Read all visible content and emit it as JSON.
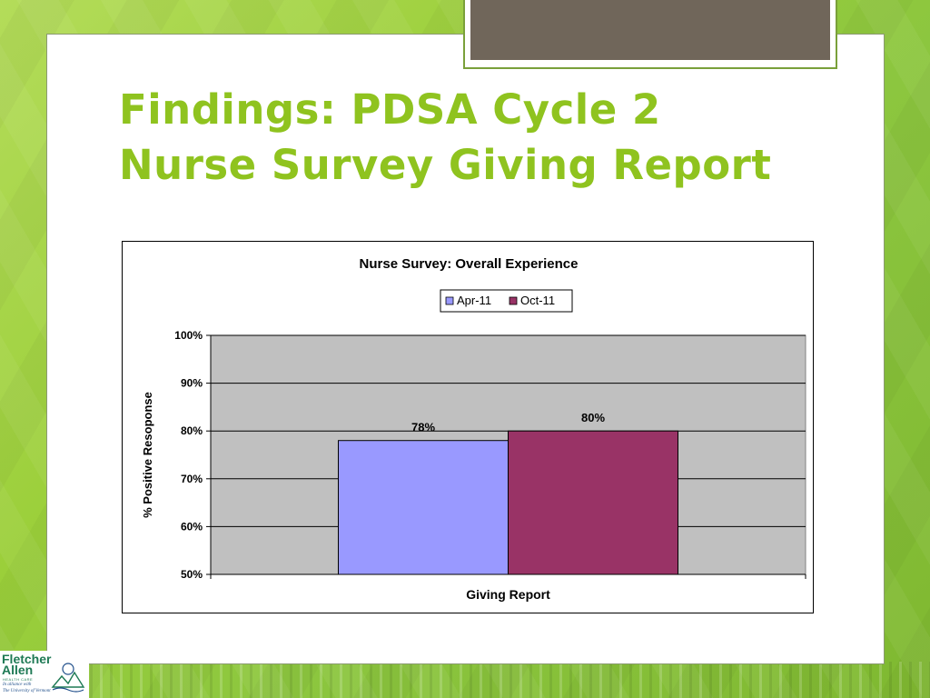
{
  "slide": {
    "title_line1": "Findings:  PDSA Cycle 2",
    "title_line2": "Nurse Survey Giving Report"
  },
  "logo": {
    "line1": "Fletcher",
    "line2": "Allen",
    "line3": "HEALTH CARE",
    "line4": "In alliance with",
    "line5": "The University of Vermont"
  },
  "colors": {
    "title_green": "#8fc31f",
    "plot_area": "#c0c0c0",
    "series_apr": "#9999ff",
    "series_oct": "#993366"
  },
  "chart_data": {
    "type": "bar",
    "title": "Nurse Survey:  Overall Experience",
    "xlabel": "Giving Report",
    "ylabel": "% Positive Resoponse",
    "categories": [
      "Giving Report"
    ],
    "series": [
      {
        "name": "Apr-11",
        "values": [
          78
        ],
        "label": "78%",
        "color": "#9999ff"
      },
      {
        "name": "Oct-11",
        "values": [
          80
        ],
        "label": "80%",
        "color": "#993366"
      }
    ],
    "ylim": [
      50,
      100
    ],
    "yticks": [
      {
        "value": 100,
        "label": "100%"
      },
      {
        "value": 90,
        "label": "90%"
      },
      {
        "value": 80,
        "label": "80%"
      },
      {
        "value": 70,
        "label": "70%"
      },
      {
        "value": 60,
        "label": "60%"
      },
      {
        "value": 50,
        "label": "50%"
      }
    ],
    "legend_position": "top",
    "grid": true
  }
}
